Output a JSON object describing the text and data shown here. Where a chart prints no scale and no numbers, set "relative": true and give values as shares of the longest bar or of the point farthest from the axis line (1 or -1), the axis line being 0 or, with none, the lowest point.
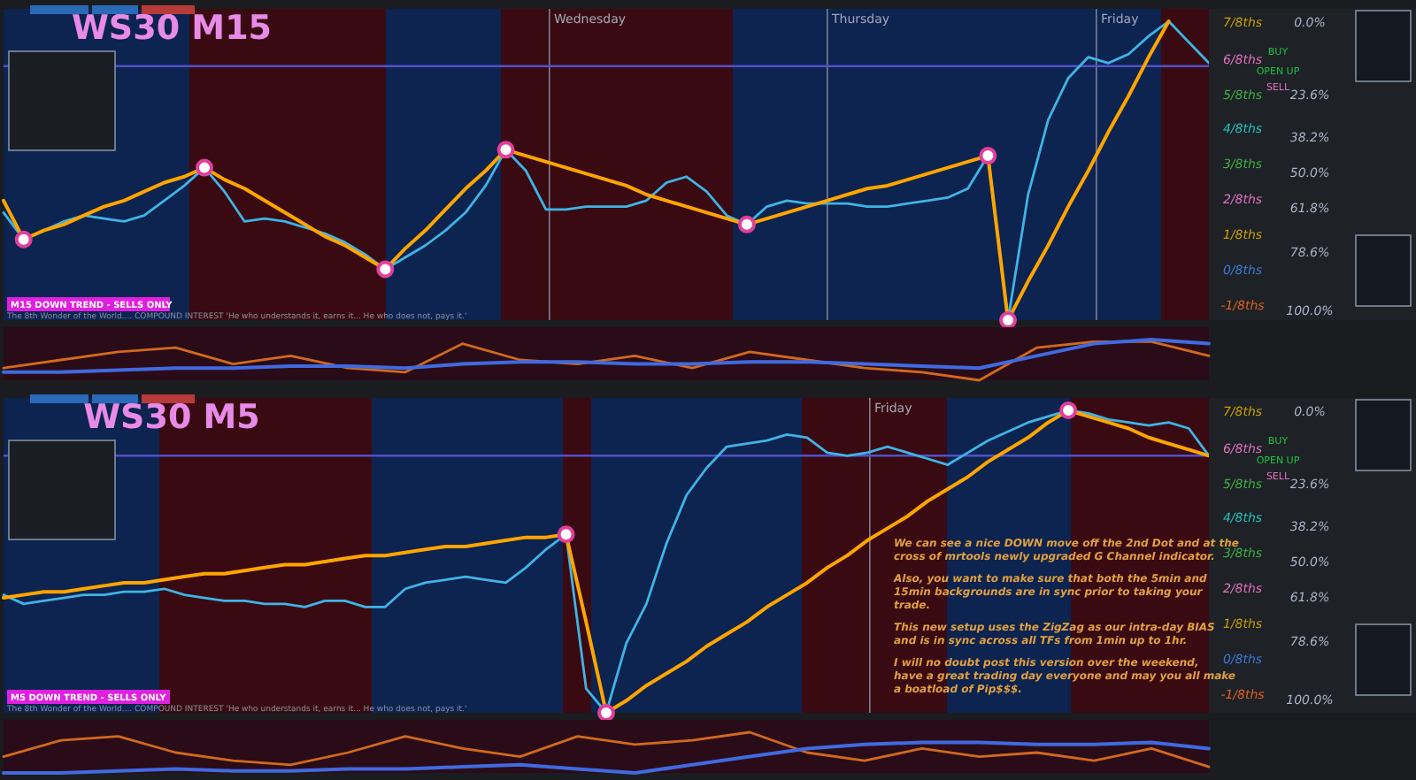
{
  "chart_data": [
    {
      "type": "line",
      "title": "WS30 M15",
      "relative": true,
      "categories": [
        null,
        null,
        null,
        null,
        null,
        null,
        null,
        null,
        null,
        null,
        null,
        null,
        null,
        null,
        null,
        null,
        null,
        null,
        null,
        null,
        null,
        null,
        null,
        null,
        null,
        null,
        null,
        null,
        null,
        null,
        null,
        null,
        null,
        null,
        null,
        null,
        null,
        null,
        null,
        null,
        null,
        null,
        null,
        null,
        null,
        null,
        null,
        null,
        null,
        null,
        null,
        null,
        null,
        null,
        null,
        null,
        null,
        null,
        null,
        null,
        null
      ],
      "series": [
        {
          "color": "#3fb4e6",
          "values": [
            0.36,
            0.27,
            0.3,
            0.33,
            0.35,
            0.34,
            0.33,
            0.35,
            0.4,
            0.45,
            0.51,
            0.43,
            0.33,
            0.34,
            0.33,
            0.31,
            0.29,
            0.26,
            0.22,
            0.17,
            0.21,
            0.25,
            0.3,
            0.36,
            0.45,
            0.57,
            0.5,
            0.37,
            0.37,
            0.38,
            0.38,
            0.38,
            0.4,
            0.46,
            0.48,
            0.43,
            0.35,
            0.32,
            0.38,
            0.4,
            0.39,
            0.39,
            0.39,
            0.38,
            0.38,
            0.39,
            0.4,
            0.41,
            0.44,
            0.55,
            0,
            0.42,
            0.67,
            0.81,
            0.88,
            0.86,
            0.89,
            0.95,
            1,
            0.93,
            0.86
          ]
        },
        {
          "color": "#ffa500",
          "values": [
            0.4,
            0.27,
            0.3,
            0.32,
            0.35,
            0.38,
            0.4,
            0.43,
            0.46,
            0.48,
            0.51,
            0.47,
            0.44,
            0.4,
            0.36,
            0.32,
            0.28,
            0.25,
            0.21,
            0.17,
            0.24,
            0.3,
            0.37,
            0.44,
            0.5,
            0.57,
            0.55,
            0.53,
            0.51,
            0.49,
            0.47,
            0.45,
            0.42,
            0.4,
            0.38,
            0.36,
            0.34,
            0.32,
            0.34,
            0.36,
            0.38,
            0.4,
            0.42,
            0.44,
            0.45,
            0.47,
            0.49,
            0.51,
            0.53,
            0.55,
            0,
            0.13,
            0.25,
            0.38,
            0.5,
            0.63,
            0.75,
            0.88,
            1,
            null,
            null
          ]
        }
      ],
      "ref_lines": [
        {
          "axis": "y",
          "value": 0.85,
          "color": "#5050c8"
        }
      ],
      "annotations": [
        "M15 DOWN TREND - SELLS ONLY",
        "The 8th Wonder of the World.... COMPOUND INTEREST 'He who understands it, earns it... He who does not, pays it.'",
        "BUY",
        "SELL",
        "OPEN UP",
        "Wednesday",
        "Thursday",
        "Friday",
        "7/8ths",
        "6/8ths",
        "5/8ths",
        "4/8ths",
        "3/8ths",
        "2/8ths",
        "1/8ths",
        "0/8ths",
        "-1/8ths",
        "0.0%",
        "23.6%",
        "38.2%",
        "50.0%",
        "61.8%",
        "78.6%",
        "100.0%"
      ]
    },
    {
      "type": "line",
      "relative": true,
      "categories": [
        null,
        null,
        null,
        null,
        null,
        null,
        null,
        null,
        null,
        null,
        null,
        null,
        null,
        null,
        null,
        null,
        null,
        null,
        null,
        null,
        null,
        null
      ],
      "series": [
        {
          "color": "#d2691e",
          "values": [
            0.3,
            0.5,
            0.7,
            0.8,
            0.4,
            0.6,
            0.3,
            0.2,
            0.9,
            0.5,
            0.4,
            0.6,
            0.3,
            0.7,
            0.5,
            0.3,
            0.2,
            0,
            0.8,
            0.95,
            0.95,
            0.6
          ]
        },
        {
          "color": "#4169e1",
          "values": [
            0.2,
            0.2,
            0.25,
            0.3,
            0.3,
            0.35,
            0.35,
            0.3,
            0.4,
            0.45,
            0.45,
            0.4,
            0.4,
            0.45,
            0.45,
            0.4,
            0.35,
            0.3,
            0.6,
            0.9,
            1,
            0.9
          ]
        }
      ]
    },
    {
      "type": "line",
      "title": "WS30 M5",
      "relative": true,
      "categories": [
        null,
        null,
        null,
        null,
        null,
        null,
        null,
        null,
        null,
        null,
        null,
        null,
        null,
        null,
        null,
        null,
        null,
        null,
        null,
        null,
        null,
        null,
        null,
        null,
        null,
        null,
        null,
        null,
        null,
        null,
        null,
        null,
        null,
        null,
        null,
        null,
        null,
        null,
        null,
        null,
        null,
        null,
        null,
        null,
        null,
        null,
        null,
        null,
        null,
        null,
        null,
        null,
        null,
        null,
        null,
        null,
        null,
        null,
        null,
        null,
        null
      ],
      "series": [
        {
          "color": "#3fb4e6",
          "values": [
            0.39,
            0.36,
            0.37,
            0.38,
            0.39,
            0.39,
            0.4,
            0.4,
            0.41,
            0.39,
            0.38,
            0.37,
            0.37,
            0.36,
            0.36,
            0.35,
            0.37,
            0.37,
            0.35,
            0.35,
            0.41,
            0.43,
            0.44,
            0.45,
            0.44,
            0.43,
            0.48,
            0.54,
            0.59,
            0.08,
            0,
            0.23,
            0.36,
            0.56,
            0.72,
            0.81,
            0.88,
            0.89,
            0.9,
            0.92,
            0.91,
            0.86,
            0.85,
            0.86,
            0.88,
            0.86,
            0.84,
            0.82,
            0.86,
            0.9,
            0.93,
            0.96,
            0.98,
            1,
            0.99,
            0.97,
            0.96,
            0.95,
            0.96,
            0.94,
            0.85
          ]
        },
        {
          "color": "#ffa500",
          "values": [
            0.38,
            0.39,
            0.4,
            0.4,
            0.41,
            0.42,
            0.43,
            0.43,
            0.44,
            0.45,
            0.46,
            0.46,
            0.47,
            0.48,
            0.49,
            0.49,
            0.5,
            0.51,
            0.52,
            0.52,
            0.53,
            0.54,
            0.55,
            0.55,
            0.56,
            0.57,
            0.58,
            0.58,
            0.59,
            0.3,
            0,
            0.04,
            0.09,
            0.13,
            0.17,
            0.22,
            0.26,
            0.3,
            0.35,
            0.39,
            0.43,
            0.48,
            0.52,
            0.57,
            0.61,
            0.65,
            0.7,
            0.74,
            0.78,
            0.83,
            0.87,
            0.91,
            0.96,
            1,
            0.98,
            0.96,
            0.94,
            0.91,
            0.89,
            0.87,
            0.85
          ]
        }
      ],
      "ref_lines": [
        {
          "axis": "y",
          "value": 0.85,
          "color": "#5050c8"
        }
      ],
      "annotations": [
        "M5 DOWN TREND - SELLS ONLY",
        "The 8th Wonder of the World.... COMPOUND INTEREST 'He who understands it, earns it... He who does not, pays it.'",
        "BUY",
        "SELL",
        "OPEN UP",
        "Friday",
        "7/8ths",
        "6/8ths",
        "5/8ths",
        "4/8ths",
        "3/8ths",
        "2/8ths",
        "1/8ths",
        "0/8ths",
        "-1/8ths",
        "0.0%",
        "23.6%",
        "38.2%",
        "50.0%",
        "61.8%",
        "78.6%",
        "100.0%",
        "We can see a nice DOWN move off the 2nd Dot and at the cross of mrtools newly upgraded G Channel indicator.",
        "Also, you want to make sure that both the 5min and 15min backgrounds are in sync prior to taking your trade.",
        "This new setup uses the ZigZag as our intra-day BIAS and is in sync across all TFs from 1min up to 1hr.",
        "I will no doubt post this version over the weekend, have a great trading day everyone and may you all make a boatload of Pip$$$."
      ]
    },
    {
      "type": "line",
      "relative": true,
      "categories": [
        null,
        null,
        null,
        null,
        null,
        null,
        null,
        null,
        null,
        null,
        null,
        null,
        null,
        null,
        null,
        null,
        null,
        null,
        null,
        null,
        null,
        null
      ],
      "series": [
        {
          "color": "#d2691e",
          "values": [
            0.4,
            0.8,
            0.9,
            0.5,
            0.3,
            0.2,
            0.5,
            0.9,
            0.6,
            0.4,
            0.9,
            0.7,
            0.8,
            1,
            0.5,
            0.3,
            0.6,
            0.4,
            0.5,
            0.3,
            0.6,
            0.15
          ]
        },
        {
          "color": "#4169e1",
          "values": [
            0,
            0,
            0.05,
            0.1,
            0.05,
            0.05,
            0.1,
            0.1,
            0.15,
            0.2,
            0.1,
            0,
            0.2,
            0.4,
            0.6,
            0.7,
            0.75,
            0.75,
            0.7,
            0.7,
            0.75,
            0.6
          ]
        }
      ]
    }
  ]
}
